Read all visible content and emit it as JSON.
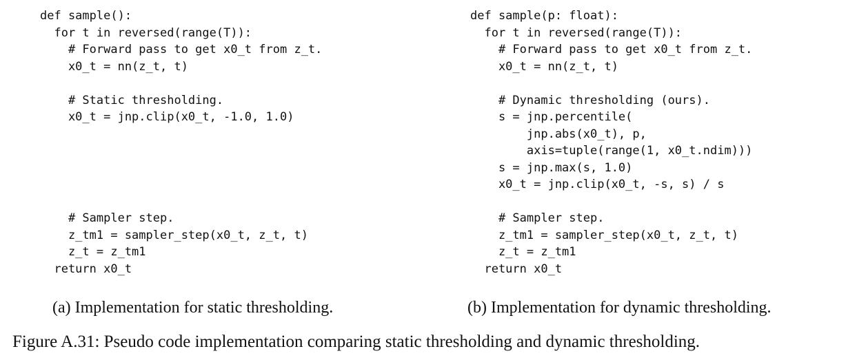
{
  "left_panel": {
    "code_lines": [
      "def sample():",
      "  for t in reversed(range(T)):",
      "    # Forward pass to get x0_t from z_t.",
      "    x0_t = nn(z_t, t)",
      "",
      "    # Static thresholding.",
      "    x0_t = jnp.clip(x0_t, -1.0, 1.0)",
      "",
      "",
      "",
      "",
      "",
      "    # Sampler step.",
      "    z_tm1 = sampler_step(x0_t, z_t, t)",
      "    z_t = z_tm1",
      "  return x0_t"
    ],
    "caption": "(a) Implementation for static thresholding."
  },
  "right_panel": {
    "code_lines": [
      "def sample(p: float):",
      "  for t in reversed(range(T)):",
      "    # Forward pass to get x0_t from z_t.",
      "    x0_t = nn(z_t, t)",
      "",
      "    # Dynamic thresholding (ours).",
      "    s = jnp.percentile(",
      "        jnp.abs(x0_t), p,",
      "        axis=tuple(range(1, x0_t.ndim)))",
      "    s = jnp.max(s, 1.0)",
      "    x0_t = jnp.clip(x0_t, -s, s) / s",
      "",
      "    # Sampler step.",
      "    z_tm1 = sampler_step(x0_t, z_t, t)",
      "    z_t = z_tm1",
      "  return x0_t"
    ],
    "caption": "(b) Implementation for dynamic thresholding."
  },
  "figure_caption": "Figure A.31: Pseudo code implementation comparing static thresholding and dynamic thresholding."
}
